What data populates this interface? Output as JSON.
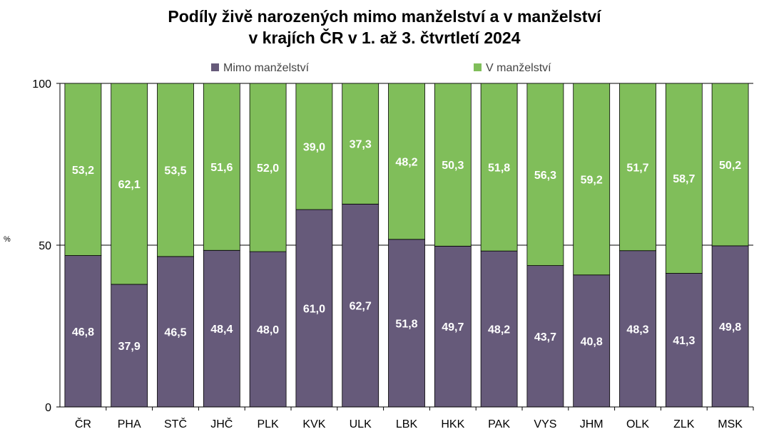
{
  "title_line1": "Podíly živě narozených mimo manželství a v manželství",
  "title_line2": "v krajích ČR v 1. až 3. čtvrtletí 2024",
  "colors": {
    "mimo": "#665a7a",
    "v": "#80be5a",
    "axis": "#000000"
  },
  "chart_data": {
    "type": "bar",
    "stacked": true,
    "title": "Podíly živě narozených mimo manželství a v manželství v krajích ČR v 1. až 3. čtvrtletí 2024",
    "ylabel": "%",
    "ylim": [
      0,
      100
    ],
    "yticks": [
      "0",
      "50",
      "100"
    ],
    "grid": "horizontal at 50",
    "legend_position": "top",
    "categories": [
      "ČR",
      "PHA",
      "STČ",
      "JHČ",
      "PLK",
      "KVK",
      "ULK",
      "LBK",
      "HKK",
      "PAK",
      "VYS",
      "JHM",
      "OLK",
      "ZLK",
      "MSK"
    ],
    "series": [
      {
        "name": "Mimo manželství",
        "values": [
          46.8,
          37.9,
          46.5,
          48.4,
          48.0,
          61.0,
          62.7,
          51.8,
          49.7,
          48.2,
          43.7,
          40.8,
          48.3,
          41.3,
          49.8
        ],
        "labels": [
          "46,8",
          "37,9",
          "46,5",
          "48,4",
          "48,0",
          "61,0",
          "62,7",
          "51,8",
          "49,7",
          "48,2",
          "43,7",
          "40,8",
          "48,3",
          "41,3",
          "49,8"
        ]
      },
      {
        "name": "V manželství",
        "values": [
          53.2,
          62.1,
          53.5,
          51.6,
          52.0,
          39.0,
          37.3,
          48.2,
          50.3,
          51.8,
          56.3,
          59.2,
          51.7,
          58.7,
          50.2
        ],
        "labels": [
          "53,2",
          "62,1",
          "53,5",
          "51,6",
          "52,0",
          "39,0",
          "37,3",
          "48,2",
          "50,3",
          "51,8",
          "56,3",
          "59,2",
          "51,7",
          "58,7",
          "50,2"
        ]
      }
    ]
  }
}
